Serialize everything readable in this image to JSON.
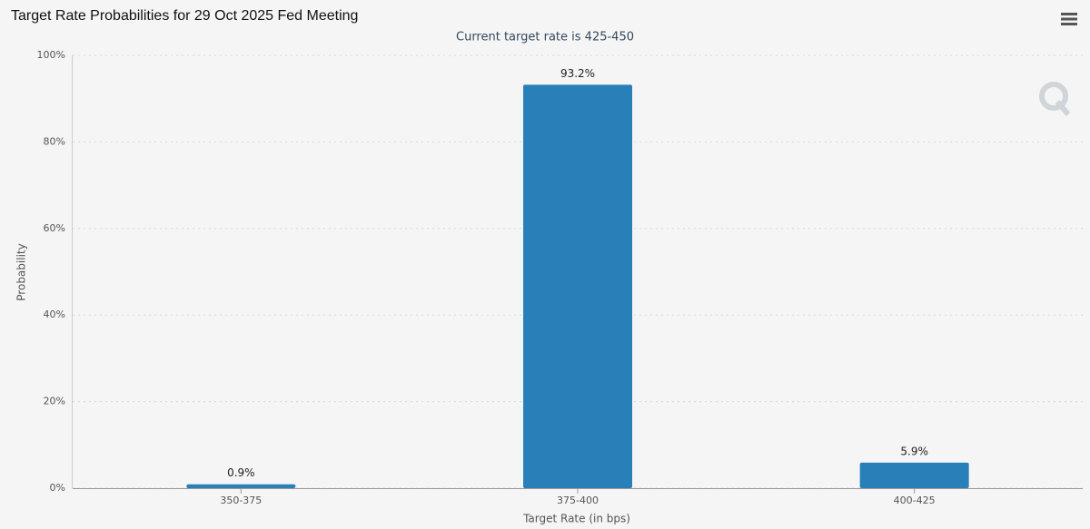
{
  "chart_data": {
    "type": "bar",
    "title": "Target Rate Probabilities for 29 Oct 2025 Fed Meeting",
    "subtitle": "Current target rate is 425-450",
    "x_label": "Target Rate (in bps)",
    "y_label": "Probability",
    "categories": [
      "350-375",
      "375-400",
      "400-425"
    ],
    "values": [
      0.9,
      93.2,
      5.9
    ],
    "value_labels": [
      "0.9%",
      "93.2%",
      "5.9%"
    ],
    "color": "#2980b9",
    "ylim": [
      0,
      100
    ],
    "yticks": [
      {
        "value": 0,
        "label": "0%"
      },
      {
        "value": 20,
        "label": "20%"
      },
      {
        "value": 40,
        "label": "40%"
      },
      {
        "value": 60,
        "label": "60%"
      },
      {
        "value": 80,
        "label": "80%"
      },
      {
        "value": 100,
        "label": "100%"
      }
    ],
    "grid": true
  }
}
